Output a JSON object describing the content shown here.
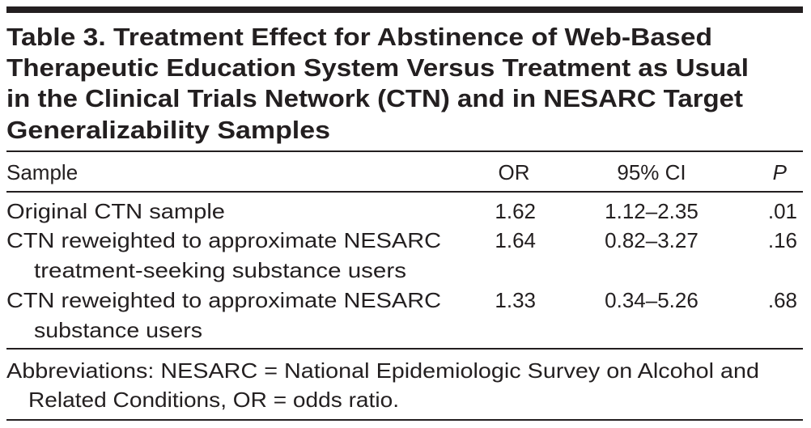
{
  "table": {
    "title_lines": [
      "Table 3. Treatment Effect for Abstinence of Web-Based",
      "Therapeutic Education System Versus Treatment as Usual",
      "in the Clinical Trials Network (CTN) and in NESARC Target",
      "Generalizability Samples"
    ],
    "columns": [
      "Sample",
      "OR",
      "95% CI",
      "P"
    ],
    "rows": [
      {
        "sample": [
          "Original CTN sample"
        ],
        "or": "1.62",
        "ci": "1.12–2.35",
        "p": ".01"
      },
      {
        "sample": [
          "CTN reweighted to approximate NESARC",
          "treatment-seeking substance users"
        ],
        "or": "1.64",
        "ci": "0.82–3.27",
        "p": ".16"
      },
      {
        "sample": [
          "CTN reweighted to approximate NESARC",
          "substance users"
        ],
        "or": "1.33",
        "ci": "0.34–5.26",
        "p": ".68"
      }
    ],
    "footnote_lines": [
      "Abbreviations: NESARC = National Epidemiologic Survey on Alcohol and",
      "Related Conditions, OR = odds ratio."
    ]
  }
}
